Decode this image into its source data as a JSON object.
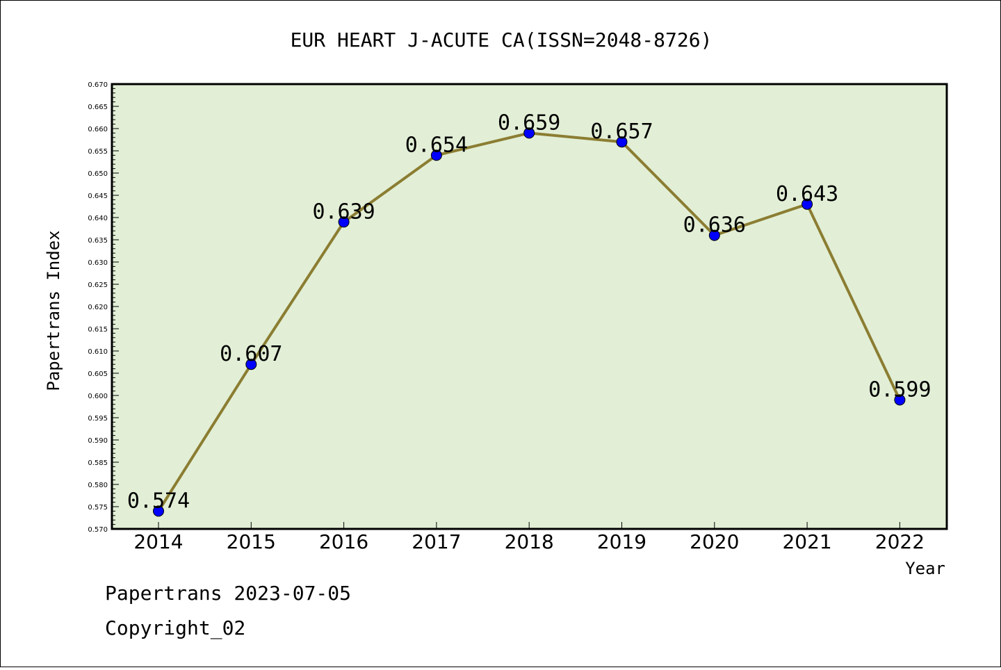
{
  "chart_data": {
    "type": "line",
    "title": "EUR HEART J-ACUTE CA(ISSN=2048-8726)",
    "xlabel": "Year",
    "ylabel": "Papertrans Index",
    "categories": [
      "2014",
      "2015",
      "2016",
      "2017",
      "2018",
      "2019",
      "2020",
      "2021",
      "2022"
    ],
    "series": [
      {
        "values": [
          0.574,
          0.607,
          0.639,
          0.654,
          0.659,
          0.657,
          0.636,
          0.643,
          0.599
        ]
      }
    ],
    "data_labels": [
      "0.574",
      "0.607",
      "0.639",
      "0.654",
      "0.659",
      "0.657",
      "0.636",
      "0.643",
      "0.599"
    ],
    "ylim": [
      0.57,
      0.67
    ],
    "y_ticks": [
      "0.570",
      "0.575",
      "0.580",
      "0.585",
      "0.590",
      "0.595",
      "0.600",
      "0.605",
      "0.610",
      "0.615",
      "0.620",
      "0.625",
      "0.630",
      "0.635",
      "0.640",
      "0.645",
      "0.650",
      "0.655",
      "0.660",
      "0.665",
      "0.670"
    ],
    "grid": false,
    "colors": {
      "plot_bg": "#e2efd6",
      "line": "#8b7d32",
      "marker": "#0000ff"
    }
  },
  "footer": {
    "line1": "Papertrans 2023-07-05",
    "line2": "Copyright_02"
  }
}
